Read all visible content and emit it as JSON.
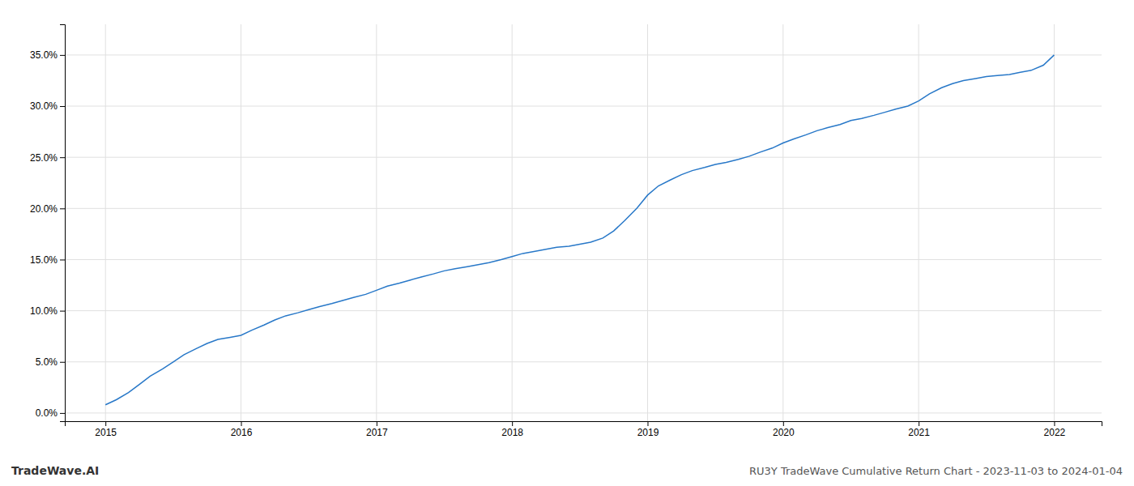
{
  "chart_data": {
    "type": "line",
    "title": "RU3Y TradeWave Cumulative Return Chart - 2023-11-03 to 2024-01-04",
    "annotations": [
      "TradeWave.AI"
    ],
    "color": "#2878c8",
    "x": [
      2015.0,
      2015.08,
      2015.17,
      2015.25,
      2015.33,
      2015.42,
      2015.5,
      2015.58,
      2015.67,
      2015.75,
      2015.83,
      2015.92,
      2016.0,
      2016.08,
      2016.17,
      2016.25,
      2016.33,
      2016.42,
      2016.5,
      2016.58,
      2016.67,
      2016.75,
      2016.83,
      2016.92,
      2017.0,
      2017.08,
      2017.17,
      2017.25,
      2017.33,
      2017.42,
      2017.5,
      2017.58,
      2017.67,
      2017.75,
      2017.83,
      2017.92,
      2018.0,
      2018.08,
      2018.17,
      2018.25,
      2018.33,
      2018.42,
      2018.5,
      2018.58,
      2018.67,
      2018.75,
      2018.83,
      2018.92,
      2019.0,
      2019.08,
      2019.17,
      2019.25,
      2019.33,
      2019.42,
      2019.5,
      2019.58,
      2019.67,
      2019.75,
      2019.83,
      2019.92,
      2020.0,
      2020.08,
      2020.17,
      2020.25,
      2020.33,
      2020.42,
      2020.5,
      2020.58,
      2020.67,
      2020.75,
      2020.83,
      2020.92,
      2021.0,
      2021.08,
      2021.17,
      2021.25,
      2021.33,
      2021.42,
      2021.5,
      2021.58,
      2021.67,
      2021.75,
      2021.83,
      2021.92,
      2022.0
    ],
    "values": [
      0.008,
      0.013,
      0.02,
      0.028,
      0.036,
      0.043,
      0.05,
      0.057,
      0.063,
      0.068,
      0.072,
      0.074,
      0.076,
      0.081,
      0.086,
      0.091,
      0.095,
      0.098,
      0.101,
      0.104,
      0.107,
      0.11,
      0.113,
      0.116,
      0.12,
      0.124,
      0.127,
      0.13,
      0.133,
      0.136,
      0.139,
      0.141,
      0.143,
      0.145,
      0.147,
      0.15,
      0.153,
      0.156,
      0.158,
      0.16,
      0.162,
      0.163,
      0.165,
      0.167,
      0.171,
      0.178,
      0.188,
      0.2,
      0.213,
      0.222,
      0.228,
      0.233,
      0.237,
      0.24,
      0.243,
      0.245,
      0.248,
      0.251,
      0.255,
      0.259,
      0.264,
      0.268,
      0.272,
      0.276,
      0.279,
      0.282,
      0.286,
      0.288,
      0.291,
      0.294,
      0.297,
      0.3,
      0.305,
      0.312,
      0.318,
      0.322,
      0.325,
      0.327,
      0.329,
      0.33,
      0.331,
      0.333,
      0.335,
      0.34,
      0.35
    ],
    "xlim": [
      2014.7,
      2022.35
    ],
    "ylim": [
      -0.008,
      0.38
    ],
    "xticks": [
      2015,
      2016,
      2017,
      2018,
      2019,
      2020,
      2021,
      2022
    ],
    "yticks": [
      {
        "value": 0.0,
        "label": "0.0%"
      },
      {
        "value": 0.05,
        "label": "5.0%"
      },
      {
        "value": 0.1,
        "label": "10.0%"
      },
      {
        "value": 0.15,
        "label": "15.0%"
      },
      {
        "value": 0.2,
        "label": "20.0%"
      },
      {
        "value": 0.25,
        "label": "25.0%"
      },
      {
        "value": 0.3,
        "label": "30.0%"
      },
      {
        "value": 0.35,
        "label": "35.0%"
      }
    ],
    "grid": true
  }
}
